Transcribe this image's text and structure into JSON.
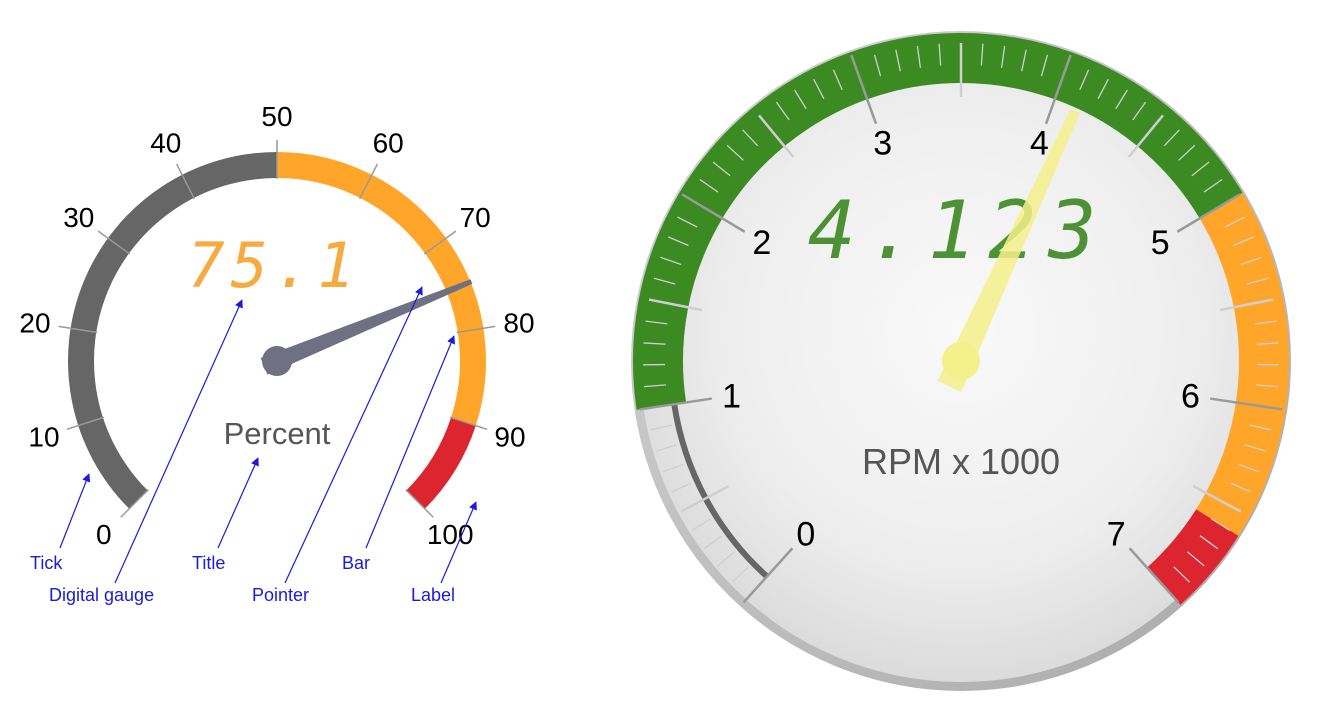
{
  "gauge_left": {
    "title": "Percent",
    "digital_value": "75.1",
    "value": 75.1,
    "min": 0,
    "max": 100,
    "labels": [
      "0",
      "10",
      "20",
      "30",
      "40",
      "50",
      "60",
      "70",
      "80",
      "90",
      "100"
    ],
    "bands": [
      {
        "from": 0,
        "to": 50,
        "color": "#666666"
      },
      {
        "from": 50,
        "to": 90,
        "color": "#ffa52a"
      },
      {
        "from": 90,
        "to": 100,
        "color": "#dd2530"
      }
    ],
    "pointer_color": "#6f7182",
    "digital_color": "#f7a12b"
  },
  "annotations": {
    "tick": "Tick",
    "digital_gauge": "Digital gauge",
    "title": "Title",
    "pointer": "Pointer",
    "bar": "Bar",
    "label": "Label"
  },
  "gauge_right": {
    "title": "RPM x 1000",
    "digital_value": "4.123",
    "value": 4.123,
    "min": 0,
    "max": 7,
    "labels": [
      "0",
      "1",
      "2",
      "3",
      "4",
      "5",
      "6",
      "7"
    ],
    "bands": [
      {
        "from": 0,
        "to": 1,
        "color": "#666666"
      },
      {
        "from": 1,
        "to": 5,
        "color": "#3b8a22"
      },
      {
        "from": 5,
        "to": 6.6,
        "color": "#ffa52a"
      },
      {
        "from": 6.6,
        "to": 7,
        "color": "#dd2530"
      }
    ],
    "pointer_color": "#f4f08a",
    "digital_color": "#3f8a24"
  }
}
